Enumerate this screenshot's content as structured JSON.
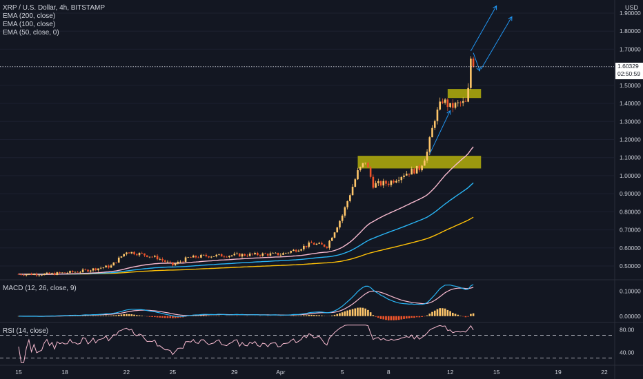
{
  "header": {
    "symbol_line": "XRP / U.S. Dollar, 4h, BITSTAMP",
    "ema200": "EMA (200, close)",
    "ema100": "EMA (100, close)",
    "ema50": "EMA (50, close, 0)",
    "currency": "USD"
  },
  "macd_label": "MACD (12, 26, close, 9)",
  "rsi_label": "RSI (14, close)",
  "price_tag": {
    "price": "1.60329",
    "countdown": "02:50:59"
  },
  "colors": {
    "background": "#131722",
    "up": "#ffc66a",
    "down": "#f0542a",
    "ema50": "#f8bbd0",
    "ema100": "#29b6f6",
    "ema200": "#ffc107",
    "zone": "#c9c40a",
    "arrow": "#2196f3",
    "macd_line": "#29b6f6",
    "signal_line": "#f8bbd0",
    "rsi_line": "#f8bbd0"
  },
  "chart_data": {
    "type": "candlestick",
    "title": "XRP / U.S. Dollar, 4h, BITSTAMP",
    "price_axis": {
      "ticks": [
        "1.90000",
        "1.80000",
        "1.70000",
        "1.60000",
        "1.50000",
        "1.40000",
        "1.30000",
        "1.20000",
        "1.10000",
        "1.00000",
        "0.90000",
        "0.80000",
        "0.70000",
        "0.60000",
        "0.50000"
      ],
      "range": [
        0.43,
        1.96
      ]
    },
    "time_axis": {
      "ticks": [
        "15",
        "18",
        "22",
        "25",
        "29",
        "Apr",
        "5",
        "8",
        "12",
        "15",
        "19",
        "22"
      ],
      "range_days": [
        "Mar 15",
        "Apr 22"
      ]
    },
    "price_anchors": [
      [
        "Mar 15",
        0.455
      ],
      [
        "Mar 17",
        0.455
      ],
      [
        "Mar 19",
        0.47
      ],
      [
        "Mar 21",
        0.5
      ],
      [
        "Mar 22",
        0.58
      ],
      [
        "Mar 23",
        0.565
      ],
      [
        "Mar 24",
        0.545
      ],
      [
        "Mar 25",
        0.505
      ],
      [
        "Mar 26",
        0.545
      ],
      [
        "Mar 27",
        0.555
      ],
      [
        "Mar 29",
        0.56
      ],
      [
        "Mar 31",
        0.565
      ],
      [
        "Apr 1",
        0.565
      ],
      [
        "Apr 2",
        0.59
      ],
      [
        "Apr 3",
        0.625
      ],
      [
        "Apr 4",
        0.61
      ],
      [
        "Apr 5",
        0.78
      ],
      [
        "Apr 5 12:00",
        0.9
      ],
      [
        "Apr 6",
        1.02
      ],
      [
        "Apr 6 12:00",
        1.08
      ],
      [
        "Apr 7",
        0.95
      ],
      [
        "Apr 8",
        0.96
      ],
      [
        "Apr 9",
        1.01
      ],
      [
        "Apr 10",
        1.04
      ],
      [
        "Apr 10 12:00",
        1.13
      ],
      [
        "Apr 11",
        1.32
      ],
      [
        "Apr 11 12:00",
        1.42
      ],
      [
        "Apr 12",
        1.38
      ],
      [
        "Apr 12 16:00",
        1.4
      ],
      [
        "Apr 13",
        1.4
      ],
      [
        "Apr 13 04:00",
        1.47
      ],
      [
        "Apr 13 08:00",
        1.65
      ],
      [
        "Apr 13 12:00",
        1.6
      ]
    ],
    "last_price": 1.60329,
    "ema50_end": 1.16,
    "ema100_end": 0.96,
    "ema200_end": 0.77,
    "zones": [
      {
        "from": "Apr 11 20:00",
        "to": "Apr 14",
        "low": 1.43,
        "high": 1.48
      },
      {
        "from": "Apr 6",
        "to": "Apr 14",
        "low": 1.04,
        "high": 1.11
      }
    ],
    "projection_arrows": [
      {
        "from": [
          "Apr 13 08:00",
          1.69
        ],
        "to": [
          "Apr 15",
          1.94
        ]
      },
      {
        "from": [
          "Apr 13 12:00",
          1.68
        ],
        "to": [
          "Apr 13 22:00",
          1.58
        ]
      },
      {
        "from": [
          "Apr 14",
          1.59
        ],
        "to": [
          "Apr 16",
          1.88
        ]
      },
      {
        "from": [
          "Apr 10 16:00",
          1.12
        ],
        "to": [
          "Apr 12",
          1.36
        ]
      }
    ],
    "macd": {
      "axis_ticks": [
        "0.10000",
        "0.00000"
      ],
      "range": [
        -0.02,
        0.14
      ]
    },
    "rsi": {
      "axis_ticks": [
        "80.00",
        "40.00"
      ],
      "bands": [
        70,
        30
      ],
      "range": [
        20,
        90
      ]
    }
  }
}
